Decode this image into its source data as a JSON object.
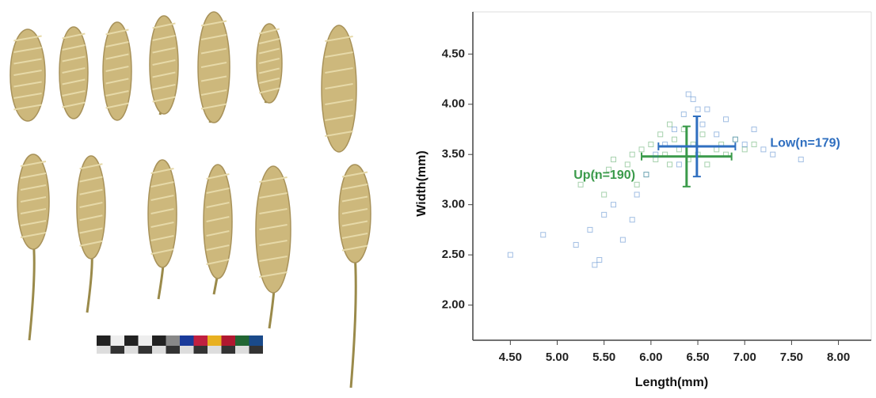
{
  "chart_data": {
    "type": "scatter",
    "xlabel": "Length(mm)",
    "ylabel": "Width(mm)",
    "xlim": [
      4.1,
      8.35
    ],
    "ylim": [
      1.65,
      4.92
    ],
    "xticks": [
      {
        "value": 4.5,
        "label": "4.50"
      },
      {
        "value": 5,
        "label": "5.00"
      },
      {
        "value": 5.5,
        "label": "5.50"
      },
      {
        "value": 6,
        "label": "6.00"
      },
      {
        "value": 6.5,
        "label": "6.50"
      },
      {
        "value": 7,
        "label": "7.00"
      },
      {
        "value": 7.5,
        "label": "7.50"
      },
      {
        "value": 8,
        "label": "8.00"
      }
    ],
    "yticks": [
      {
        "value": 2,
        "label": "2.00"
      },
      {
        "value": 2.5,
        "label": "2.50"
      },
      {
        "value": 3,
        "label": "3.00"
      },
      {
        "value": 3.5,
        "label": "3.50"
      },
      {
        "value": 4,
        "label": "4.00"
      },
      {
        "value": 4.5,
        "label": "4.50"
      }
    ],
    "series": [
      {
        "name": "Up(n=190)",
        "color": "#3a9a4a",
        "x": [
          5.25,
          5.4,
          5.55,
          5.6,
          5.75,
          5.8,
          5.9,
          5.95,
          6.0,
          6.05,
          6.1,
          6.15,
          6.2,
          6.25,
          6.3,
          6.35,
          6.4,
          6.45,
          6.5,
          6.55,
          6.6,
          6.7,
          6.75,
          6.8,
          6.9,
          7.0,
          7.1,
          5.5,
          5.85,
          6.2
        ],
        "y": [
          3.2,
          3.3,
          3.35,
          3.45,
          3.4,
          3.5,
          3.55,
          3.3,
          3.6,
          3.45,
          3.7,
          3.5,
          3.4,
          3.65,
          3.55,
          3.75,
          3.45,
          3.6,
          3.5,
          3.7,
          3.4,
          3.55,
          3.6,
          3.5,
          3.65,
          3.55,
          3.6,
          3.1,
          3.2,
          3.8
        ],
        "mean_x": 6.38,
        "xerr": 0.48,
        "mean_y": 3.48,
        "yerr": 0.3
      },
      {
        "name": "Low(n=179)",
        "color": "#2f6fc0",
        "x": [
          4.5,
          4.85,
          5.2,
          5.35,
          5.45,
          5.5,
          5.6,
          5.7,
          5.8,
          5.85,
          5.95,
          6.05,
          6.15,
          6.25,
          6.35,
          6.45,
          6.55,
          6.6,
          6.7,
          6.8,
          6.9,
          7.0,
          7.1,
          7.2,
          7.3,
          7.6,
          6.4,
          6.5,
          6.3,
          5.4
        ],
        "y": [
          2.5,
          2.7,
          2.6,
          2.75,
          2.45,
          2.9,
          3.0,
          2.65,
          2.85,
          3.1,
          3.3,
          3.5,
          3.6,
          3.75,
          3.9,
          4.05,
          3.8,
          3.95,
          3.7,
          3.85,
          3.65,
          3.6,
          3.75,
          3.55,
          3.5,
          3.45,
          4.1,
          3.95,
          3.4,
          2.4
        ],
        "mean_x": 6.49,
        "xerr": 0.41,
        "mean_y": 3.58,
        "yerr": 0.3
      }
    ]
  }
}
